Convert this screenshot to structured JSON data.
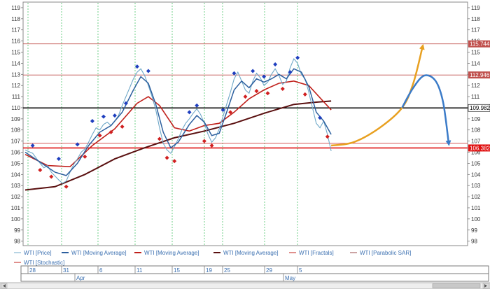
{
  "chart_data": {
    "type": "line",
    "y_ticks": [
      98,
      99,
      100,
      101,
      102,
      103,
      104,
      105,
      106,
      107,
      108,
      109,
      110,
      111,
      112,
      113,
      114,
      115,
      116,
      117,
      118,
      119
    ],
    "ylim": [
      97.6,
      119.5
    ],
    "grid": "vertical dashed green",
    "legend_position": "bottom",
    "legend": [
      {
        "name": "WTI [Price]",
        "color": "#6fa8c8",
        "style": "thin"
      },
      {
        "name": "WTI [Moving Average]",
        "color": "#2c5f9e",
        "style": "thick"
      },
      {
        "name": "WTI [Moving Average]",
        "color": "#c0201b",
        "style": "thick"
      },
      {
        "name": "WTI [Moving Average]",
        "color": "#5a1010",
        "style": "thick"
      },
      {
        "name": "WTI [Fractals]",
        "color": "#c0201b",
        "style": "thin"
      },
      {
        "name": "WTI [Parabolic SAR]",
        "color": "#9a4a4a",
        "style": "thin"
      },
      {
        "name": "WTI [Stochastic]",
        "color": "#c0201b",
        "style": "thin"
      }
    ],
    "day_labels": [
      "28",
      "31",
      "6",
      "11",
      "15",
      "19",
      "25",
      "29",
      "5"
    ],
    "month_labels": [
      "Apr",
      "May"
    ],
    "horizontal_levels": [
      {
        "value": 115.744,
        "label": "115.744",
        "color": "#c0504d",
        "line": "thin"
      },
      {
        "value": 112.946,
        "label": "112.946",
        "color": "#c0504d",
        "line": "thin"
      },
      {
        "value": 109.982,
        "label": "109.982",
        "color": "#000000",
        "line": "thick",
        "label_bg": "#ffffff",
        "label_fg": "#000000"
      },
      {
        "value": 106.382,
        "label": "106.382",
        "color": "#e01010",
        "line": "thick"
      }
    ],
    "extra_levels": [
      106.8
    ],
    "price_series": [
      [
        0,
        106.2
      ],
      [
        2,
        105.9
      ],
      [
        4,
        105.0
      ],
      [
        5,
        104.6
      ],
      [
        6,
        104.8
      ],
      [
        7,
        104.2
      ],
      [
        9,
        103.5
      ],
      [
        10,
        103.2
      ],
      [
        11,
        103.4
      ],
      [
        12,
        104.2
      ],
      [
        13,
        104.9
      ],
      [
        14,
        105.4
      ],
      [
        15,
        106.0
      ],
      [
        16,
        106.3
      ],
      [
        17,
        106.9
      ],
      [
        18,
        107.6
      ],
      [
        19,
        108.2
      ],
      [
        20,
        108.0
      ],
      [
        21,
        108.5
      ],
      [
        22,
        108.7
      ],
      [
        23,
        108.4
      ],
      [
        24,
        108.8
      ],
      [
        25,
        109.3
      ],
      [
        26,
        110.2
      ],
      [
        27,
        111.0
      ],
      [
        28,
        111.8
      ],
      [
        29,
        112.6
      ],
      [
        30,
        113.2
      ],
      [
        31,
        113.5
      ],
      [
        32,
        112.9
      ],
      [
        33,
        112.0
      ],
      [
        34,
        111.0
      ],
      [
        35,
        109.8
      ],
      [
        36,
        108.2
      ],
      [
        37,
        106.8
      ],
      [
        38,
        106.2
      ],
      [
        39,
        105.9
      ],
      [
        40,
        106.5
      ],
      [
        41,
        107.2
      ],
      [
        42,
        108.0
      ],
      [
        43,
        108.6
      ],
      [
        44,
        109.0
      ],
      [
        45,
        109.5
      ],
      [
        46,
        109.9
      ],
      [
        47,
        109.4
      ],
      [
        48,
        108.6
      ],
      [
        49,
        107.6
      ],
      [
        50,
        106.9
      ],
      [
        51,
        107.3
      ],
      [
        52,
        108.1
      ],
      [
        53,
        109.2
      ],
      [
        54,
        110.3
      ],
      [
        55,
        111.4
      ],
      [
        56,
        112.6
      ],
      [
        57,
        113.2
      ],
      [
        58,
        112.4
      ],
      [
        59,
        111.6
      ],
      [
        60,
        111.3
      ],
      [
        61,
        112.4
      ],
      [
        62,
        113.1
      ],
      [
        63,
        112.7
      ],
      [
        64,
        112.0
      ],
      [
        65,
        112.3
      ],
      [
        66,
        113.0
      ],
      [
        67,
        113.5
      ],
      [
        68,
        112.9
      ],
      [
        69,
        112.1
      ],
      [
        70,
        112.4
      ],
      [
        71,
        113.6
      ],
      [
        72,
        114.4
      ],
      [
        73,
        114.0
      ],
      [
        74,
        113.0
      ],
      [
        75,
        112.6
      ],
      [
        76,
        111.4
      ],
      [
        77,
        110.0
      ],
      [
        78,
        108.6
      ],
      [
        79,
        108.2
      ],
      [
        80,
        108.8
      ],
      [
        81,
        107.6
      ],
      [
        82,
        106.1
      ]
    ],
    "ma_fast": [
      [
        0,
        106.0
      ],
      [
        4,
        105.1
      ],
      [
        8,
        104.2
      ],
      [
        11,
        103.9
      ],
      [
        14,
        105.0
      ],
      [
        17,
        106.6
      ],
      [
        20,
        107.8
      ],
      [
        23,
        108.4
      ],
      [
        26,
        109.6
      ],
      [
        29,
        111.6
      ],
      [
        31,
        112.8
      ],
      [
        33,
        112.2
      ],
      [
        35,
        110.3
      ],
      [
        37,
        107.8
      ],
      [
        39,
        106.4
      ],
      [
        41,
        106.9
      ],
      [
        44,
        108.5
      ],
      [
        46,
        109.3
      ],
      [
        48,
        108.7
      ],
      [
        50,
        107.5
      ],
      [
        52,
        107.7
      ],
      [
        54,
        109.6
      ],
      [
        56,
        111.6
      ],
      [
        58,
        112.4
      ],
      [
        60,
        111.8
      ],
      [
        62,
        112.6
      ],
      [
        64,
        112.3
      ],
      [
        66,
        112.6
      ],
      [
        68,
        113.0
      ],
      [
        70,
        112.6
      ],
      [
        72,
        113.5
      ],
      [
        74,
        113.2
      ],
      [
        76,
        111.9
      ],
      [
        78,
        109.6
      ],
      [
        80,
        108.8
      ],
      [
        82,
        107.6
      ]
    ],
    "ma_mid": [
      [
        0,
        105.8
      ],
      [
        6,
        104.8
      ],
      [
        12,
        104.7
      ],
      [
        18,
        106.6
      ],
      [
        24,
        108.1
      ],
      [
        30,
        110.4
      ],
      [
        33,
        111.0
      ],
      [
        36,
        110.2
      ],
      [
        40,
        108.2
      ],
      [
        44,
        107.9
      ],
      [
        48,
        108.4
      ],
      [
        52,
        108.6
      ],
      [
        56,
        109.6
      ],
      [
        60,
        110.8
      ],
      [
        64,
        111.6
      ],
      [
        68,
        112.2
      ],
      [
        72,
        112.4
      ],
      [
        76,
        112.0
      ],
      [
        79,
        110.9
      ],
      [
        82,
        109.8
      ]
    ],
    "ma_slow": [
      [
        0,
        102.6
      ],
      [
        8,
        102.9
      ],
      [
        16,
        104.0
      ],
      [
        24,
        105.4
      ],
      [
        32,
        106.4
      ],
      [
        40,
        107.3
      ],
      [
        48,
        107.9
      ],
      [
        56,
        108.6
      ],
      [
        64,
        109.5
      ],
      [
        72,
        110.3
      ],
      [
        78,
        110.5
      ],
      [
        82,
        110.6
      ]
    ],
    "fractals_up": [
      [
        2,
        106.6
      ],
      [
        9,
        105.4
      ],
      [
        14,
        106.7
      ],
      [
        18,
        108.8
      ],
      [
        21,
        109.2
      ],
      [
        24,
        109.3
      ],
      [
        27,
        110.4
      ],
      [
        30,
        113.7
      ],
      [
        33,
        113.3
      ],
      [
        44,
        109.6
      ],
      [
        46,
        110.2
      ],
      [
        53,
        109.8
      ],
      [
        56,
        113.1
      ],
      [
        61,
        113.3
      ],
      [
        64,
        112.8
      ],
      [
        67,
        113.9
      ],
      [
        71,
        113.2
      ],
      [
        73,
        114.5
      ],
      [
        79,
        109.1
      ]
    ],
    "fractals_down": [
      [
        4,
        104.4
      ],
      [
        7,
        103.8
      ],
      [
        11,
        102.9
      ],
      [
        16,
        105.6
      ],
      [
        20,
        107.5
      ],
      [
        23,
        107.8
      ],
      [
        26,
        108.3
      ],
      [
        36,
        107.2
      ],
      [
        38,
        105.5
      ],
      [
        40,
        105.2
      ],
      [
        48,
        107.0
      ],
      [
        50,
        106.6
      ],
      [
        55,
        109.6
      ],
      [
        59,
        111.0
      ],
      [
        62,
        111.5
      ],
      [
        65,
        111.3
      ],
      [
        69,
        111.7
      ],
      [
        75,
        111.2
      ],
      [
        81,
        107.4
      ]
    ],
    "forecast_orange": [
      [
        82,
        106.6
      ],
      [
        88,
        106.9
      ],
      [
        95,
        108.2
      ],
      [
        101,
        110.0
      ],
      [
        104,
        112.2
      ],
      [
        106.5,
        115.5
      ]
    ],
    "forecast_blue": [
      [
        101,
        110.0
      ],
      [
        104,
        111.8
      ],
      [
        107,
        112.9
      ],
      [
        110,
        112.4
      ],
      [
        112,
        110.5
      ],
      [
        113.5,
        106.8
      ]
    ]
  }
}
